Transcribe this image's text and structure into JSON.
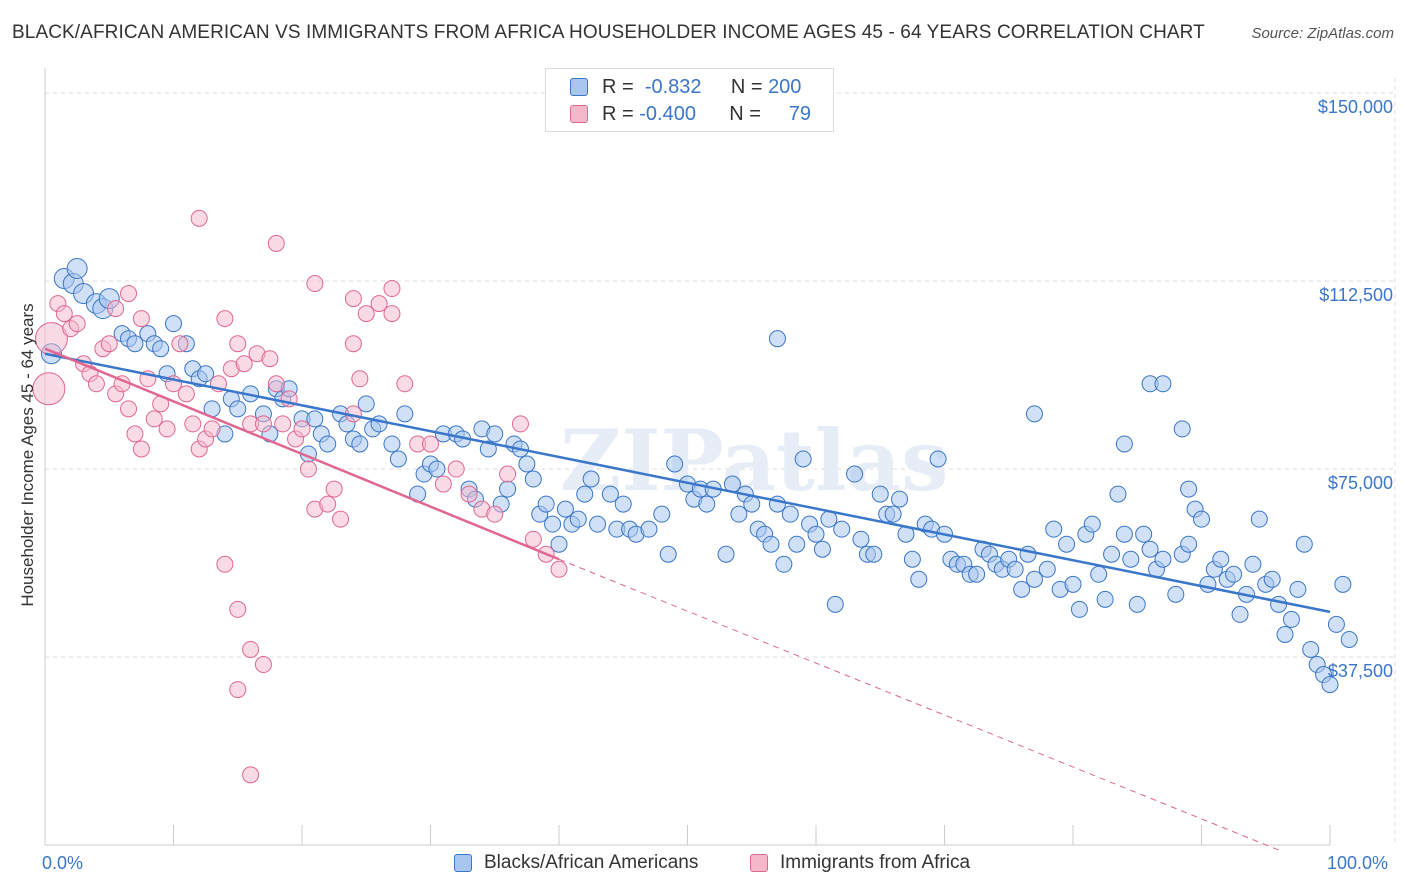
{
  "title": "BLACK/AFRICAN AMERICAN VS IMMIGRANTS FROM AFRICA HOUSEHOLDER INCOME AGES 45 - 64 YEARS CORRELATION CHART",
  "source": "Source: ZipAtlas.com",
  "watermark": "ZIPatlas",
  "colors": {
    "blue": "#3a76c9",
    "blue_fill": "#a9c6ee",
    "pink": "#e0678f",
    "pink_fill": "#f5b8cb",
    "grid": "#dddddd"
  },
  "legend_top": {
    "rows": [
      {
        "r_label": "R =",
        "r_value": "-0.832",
        "n_label": "N =",
        "n_value": "200"
      },
      {
        "r_label": "R =",
        "r_value": "-0.400",
        "n_label": "N =",
        "n_value": "79"
      }
    ]
  },
  "chart_data": {
    "type": "scatter",
    "title": "BLACK/AFRICAN AMERICAN VS IMMIGRANTS FROM AFRICA HOUSEHOLDER INCOME AGES 45 - 64 YEARS CORRELATION CHART",
    "xlabel": "",
    "ylabel": "Householder Income Ages 45 - 64 years",
    "xlim": [
      0,
      100
    ],
    "ylim": [
      0,
      153000
    ],
    "x_tick_labels": [
      "0.0%",
      "100.0%"
    ],
    "y_ticks": [
      37500,
      75000,
      112500,
      150000
    ],
    "y_tick_labels": [
      "$37,500",
      "$75,000",
      "$112,500",
      "$150,000"
    ],
    "grid": true,
    "legend_position": "bottom",
    "series": [
      {
        "name": "Blacks/African Americans",
        "color": "#3a76c9",
        "trend": {
          "x": [
            0,
            100
          ],
          "y": [
            98000,
            46500
          ]
        },
        "points": [
          [
            0.5,
            98000
          ],
          [
            1.5,
            113000
          ],
          [
            2.2,
            112000
          ],
          [
            2.5,
            115000
          ],
          [
            3,
            110000
          ],
          [
            4,
            108000
          ],
          [
            4.5,
            107000
          ],
          [
            5,
            109000
          ],
          [
            6,
            102000
          ],
          [
            6.5,
            101000
          ],
          [
            7,
            100000
          ],
          [
            8,
            102000
          ],
          [
            8.5,
            100000
          ],
          [
            9,
            99000
          ],
          [
            9.5,
            94000
          ],
          [
            10,
            104000
          ],
          [
            11,
            100000
          ],
          [
            11.5,
            95000
          ],
          [
            12,
            93000
          ],
          [
            12.5,
            94000
          ],
          [
            13,
            87000
          ],
          [
            14,
            82000
          ],
          [
            14.5,
            89000
          ],
          [
            15,
            87000
          ],
          [
            16,
            90000
          ],
          [
            17,
            86000
          ],
          [
            17.5,
            82000
          ],
          [
            18,
            91000
          ],
          [
            18.5,
            89000
          ],
          [
            19,
            91000
          ],
          [
            20,
            85000
          ],
          [
            20.5,
            78000
          ],
          [
            21,
            85000
          ],
          [
            21.5,
            82000
          ],
          [
            22,
            80000
          ],
          [
            23,
            86000
          ],
          [
            23.5,
            84000
          ],
          [
            24,
            81000
          ],
          [
            24.5,
            80000
          ],
          [
            25,
            88000
          ],
          [
            25.5,
            83000
          ],
          [
            26,
            84000
          ],
          [
            27,
            80000
          ],
          [
            27.5,
            77000
          ],
          [
            28,
            86000
          ],
          [
            29,
            70000
          ],
          [
            29.5,
            74000
          ],
          [
            30,
            76000
          ],
          [
            30.5,
            75000
          ],
          [
            31,
            82000
          ],
          [
            32,
            82000
          ],
          [
            32.5,
            81000
          ],
          [
            33,
            71000
          ],
          [
            33.5,
            69000
          ],
          [
            34,
            83000
          ],
          [
            34.5,
            79000
          ],
          [
            35,
            82000
          ],
          [
            35.5,
            68000
          ],
          [
            36,
            71000
          ],
          [
            36.5,
            80000
          ],
          [
            37,
            79000
          ],
          [
            37.5,
            76000
          ],
          [
            38,
            73000
          ],
          [
            38.5,
            66000
          ],
          [
            39,
            68000
          ],
          [
            39.5,
            64000
          ],
          [
            40,
            60000
          ],
          [
            40.5,
            67000
          ],
          [
            41,
            64000
          ],
          [
            41.5,
            65000
          ],
          [
            42,
            70000
          ],
          [
            42.5,
            73000
          ],
          [
            43,
            64000
          ],
          [
            44,
            70000
          ],
          [
            44.5,
            63000
          ],
          [
            45,
            68000
          ],
          [
            45.5,
            63000
          ],
          [
            46,
            62000
          ],
          [
            47,
            63000
          ],
          [
            48,
            66000
          ],
          [
            48.5,
            58000
          ],
          [
            49,
            76000
          ],
          [
            50,
            72000
          ],
          [
            50.5,
            69000
          ],
          [
            51,
            71000
          ],
          [
            51.5,
            68000
          ],
          [
            52,
            71000
          ],
          [
            53,
            58000
          ],
          [
            53.5,
            72000
          ],
          [
            54,
            66000
          ],
          [
            54.5,
            70000
          ],
          [
            55,
            68000
          ],
          [
            55.5,
            63000
          ],
          [
            56,
            62000
          ],
          [
            56.5,
            60000
          ],
          [
            57,
            68000
          ],
          [
            57.5,
            56000
          ],
          [
            58,
            66000
          ],
          [
            58.5,
            60000
          ],
          [
            59,
            77000
          ],
          [
            59.5,
            64000
          ],
          [
            60,
            62000
          ],
          [
            60.5,
            59000
          ],
          [
            61,
            65000
          ],
          [
            61.5,
            48000
          ],
          [
            62,
            63000
          ],
          [
            63,
            74000
          ],
          [
            63.5,
            61000
          ],
          [
            64,
            58000
          ],
          [
            64.5,
            58000
          ],
          [
            65,
            70000
          ],
          [
            65.5,
            66000
          ],
          [
            66,
            66000
          ],
          [
            66.5,
            69000
          ],
          [
            67,
            62000
          ],
          [
            67.5,
            57000
          ],
          [
            68,
            53000
          ],
          [
            68.5,
            64000
          ],
          [
            69,
            63000
          ],
          [
            69.5,
            77000
          ],
          [
            70,
            62000
          ],
          [
            70.5,
            57000
          ],
          [
            71,
            56000
          ],
          [
            71.5,
            56000
          ],
          [
            72,
            54000
          ],
          [
            72.5,
            54000
          ],
          [
            73,
            59000
          ],
          [
            73.5,
            58000
          ],
          [
            74,
            56000
          ],
          [
            74.5,
            55000
          ],
          [
            75,
            57000
          ],
          [
            75.5,
            55000
          ],
          [
            76,
            51000
          ],
          [
            76.5,
            58000
          ],
          [
            77,
            53000
          ],
          [
            78,
            55000
          ],
          [
            78.5,
            63000
          ],
          [
            79,
            51000
          ],
          [
            79.5,
            60000
          ],
          [
            80,
            52000
          ],
          [
            80.5,
            47000
          ],
          [
            81,
            62000
          ],
          [
            81.5,
            64000
          ],
          [
            82,
            54000
          ],
          [
            82.5,
            49000
          ],
          [
            83,
            58000
          ],
          [
            83.5,
            70000
          ],
          [
            84,
            62000
          ],
          [
            84.5,
            57000
          ],
          [
            85,
            48000
          ],
          [
            85.5,
            62000
          ],
          [
            86,
            59000
          ],
          [
            86.5,
            55000
          ],
          [
            87,
            57000
          ],
          [
            88,
            50000
          ],
          [
            88.5,
            58000
          ],
          [
            89,
            60000
          ],
          [
            89.5,
            67000
          ],
          [
            90,
            65000
          ],
          [
            90.5,
            52000
          ],
          [
            91,
            55000
          ],
          [
            91.5,
            57000
          ],
          [
            92,
            53000
          ],
          [
            92.5,
            54000
          ],
          [
            93,
            46000
          ],
          [
            93.5,
            50000
          ],
          [
            94,
            56000
          ],
          [
            94.5,
            65000
          ],
          [
            95,
            52000
          ],
          [
            95.5,
            53000
          ],
          [
            96,
            48000
          ],
          [
            96.5,
            42000
          ],
          [
            97,
            45000
          ],
          [
            97.5,
            51000
          ],
          [
            98,
            60000
          ],
          [
            98.5,
            39000
          ],
          [
            99,
            36000
          ],
          [
            99.5,
            34000
          ],
          [
            100,
            32000
          ],
          [
            84,
            80000
          ],
          [
            86,
            92000
          ],
          [
            87,
            92000
          ],
          [
            88.5,
            83000
          ],
          [
            77,
            86000
          ],
          [
            89,
            71000
          ],
          [
            57,
            101000
          ],
          [
            100.5,
            44000
          ],
          [
            101,
            52000
          ],
          [
            101.5,
            41000
          ]
        ]
      },
      {
        "name": "Immigrants from Africa",
        "color": "#e0678f",
        "trend": {
          "x": [
            0,
            40
          ],
          "y": [
            99000,
            57000
          ]
        },
        "trend_dashed": {
          "x": [
            40,
            96
          ],
          "y": [
            57000,
            -1000
          ]
        },
        "points": [
          [
            0.3,
            91000
          ],
          [
            0.5,
            101000
          ],
          [
            1,
            108000
          ],
          [
            1.5,
            106000
          ],
          [
            2,
            103000
          ],
          [
            2.5,
            104000
          ],
          [
            3,
            96000
          ],
          [
            3.5,
            94000
          ],
          [
            4,
            92000
          ],
          [
            4.5,
            99000
          ],
          [
            5,
            100000
          ],
          [
            5.5,
            90000
          ],
          [
            6,
            92000
          ],
          [
            6.5,
            87000
          ],
          [
            7,
            82000
          ],
          [
            7.5,
            79000
          ],
          [
            8,
            93000
          ],
          [
            8.5,
            85000
          ],
          [
            9,
            88000
          ],
          [
            9.5,
            83000
          ],
          [
            10,
            92000
          ],
          [
            10.5,
            100000
          ],
          [
            11,
            90000
          ],
          [
            11.5,
            84000
          ],
          [
            12,
            79000
          ],
          [
            12.5,
            81000
          ],
          [
            13,
            83000
          ],
          [
            13.5,
            92000
          ],
          [
            14,
            105000
          ],
          [
            14.5,
            95000
          ],
          [
            15,
            100000
          ],
          [
            15.5,
            96000
          ],
          [
            16,
            84000
          ],
          [
            16.5,
            98000
          ],
          [
            17,
            84000
          ],
          [
            17.5,
            97000
          ],
          [
            18,
            92000
          ],
          [
            18.5,
            84000
          ],
          [
            19,
            89000
          ],
          [
            19.5,
            81000
          ],
          [
            20,
            83000
          ],
          [
            20.5,
            75000
          ],
          [
            21,
            67000
          ],
          [
            22,
            68000
          ],
          [
            22.5,
            71000
          ],
          [
            23,
            65000
          ],
          [
            24,
            100000
          ],
          [
            24.5,
            93000
          ],
          [
            25,
            106000
          ],
          [
            26,
            108000
          ],
          [
            27,
            111000
          ],
          [
            28,
            92000
          ],
          [
            29,
            80000
          ],
          [
            30,
            80000
          ],
          [
            31,
            72000
          ],
          [
            32,
            75000
          ],
          [
            33,
            70000
          ],
          [
            34,
            67000
          ],
          [
            35,
            66000
          ],
          [
            36,
            74000
          ],
          [
            37,
            84000
          ],
          [
            38,
            61000
          ],
          [
            39,
            58000
          ],
          [
            40,
            55000
          ],
          [
            14,
            56000
          ],
          [
            15,
            47000
          ],
          [
            16,
            39000
          ],
          [
            15,
            31000
          ],
          [
            16,
            14000
          ],
          [
            17,
            36000
          ],
          [
            6.5,
            110000
          ],
          [
            5.5,
            107000
          ],
          [
            18,
            120000
          ],
          [
            21,
            112000
          ],
          [
            12,
            125000
          ],
          [
            24,
            109000
          ],
          [
            7.5,
            105000
          ],
          [
            27,
            106000
          ],
          [
            24,
            86000
          ]
        ]
      }
    ]
  },
  "bottom_legend": [
    {
      "label": "Blacks/African Americans"
    },
    {
      "label": "Immigrants from Africa"
    }
  ]
}
